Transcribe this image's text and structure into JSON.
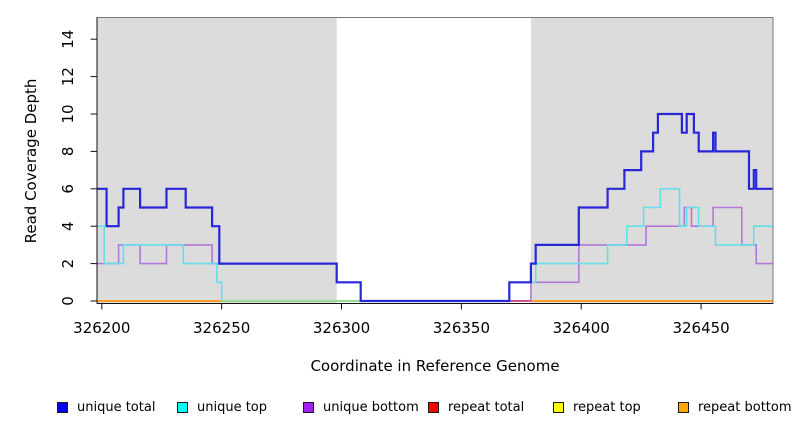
{
  "chart_data": {
    "type": "step-line",
    "title": "",
    "xlabel": "Coordinate in Reference Genome",
    "ylabel": "Read Coverage Depth",
    "xlim": [
      326198,
      326480
    ],
    "ylim": [
      0,
      15.2
    ],
    "x_ticks": [
      326200,
      326250,
      326300,
      326350,
      326400,
      326450
    ],
    "y_ticks": [
      0,
      2,
      4,
      6,
      8,
      10,
      12,
      14
    ],
    "grid": false,
    "legend_position": "bottom",
    "shaded_region_color": "#DCDCDC",
    "shaded_regions": [
      [
        326198,
        326298
      ],
      [
        326379,
        326480
      ]
    ],
    "series": [
      {
        "name": "unique total",
        "color": "#2727D8",
        "legend_color": "#0000EE",
        "width": 2.2,
        "points": [
          [
            326198,
            6
          ],
          [
            326202,
            4
          ],
          [
            326207,
            5
          ],
          [
            326209,
            6
          ],
          [
            326216,
            5
          ],
          [
            326227,
            6
          ],
          [
            326235,
            5
          ],
          [
            326246,
            4
          ],
          [
            326249,
            2
          ],
          [
            326298,
            1
          ],
          [
            326308,
            0
          ],
          [
            326370,
            1
          ],
          [
            326379,
            2
          ],
          [
            326381,
            3
          ],
          [
            326399,
            5
          ],
          [
            326411,
            6
          ],
          [
            326418,
            7
          ],
          [
            326425,
            8
          ],
          [
            326430,
            9
          ],
          [
            326432,
            10
          ],
          [
            326442,
            9
          ],
          [
            326444,
            10
          ],
          [
            326447,
            9
          ],
          [
            326449,
            8
          ],
          [
            326455,
            9
          ],
          [
            326456,
            8
          ],
          [
            326470,
            6
          ],
          [
            326472,
            7
          ],
          [
            326473,
            6
          ],
          [
            326480,
            6
          ]
        ]
      },
      {
        "name": "unique top",
        "color": "#63DFE9",
        "legend_color": "#00FFFF",
        "width": 1.6,
        "points": [
          [
            326198,
            4
          ],
          [
            326201,
            2
          ],
          [
            326209,
            3
          ],
          [
            326234,
            2
          ],
          [
            326248,
            1
          ],
          [
            326250,
            0
          ],
          [
            326370,
            1
          ],
          [
            326381,
            2
          ],
          [
            326411,
            3
          ],
          [
            326419,
            4
          ],
          [
            326426,
            5
          ],
          [
            326433,
            6
          ],
          [
            326441,
            4
          ],
          [
            326444,
            5
          ],
          [
            326449,
            4
          ],
          [
            326456,
            3
          ],
          [
            326472,
            4
          ],
          [
            326480,
            4
          ]
        ]
      },
      {
        "name": "unique bottom",
        "color": "#B277DB",
        "legend_color": "#A020F0",
        "width": 1.6,
        "points": [
          [
            326198,
            2
          ],
          [
            326207,
            3
          ],
          [
            326216,
            2
          ],
          [
            326227,
            3
          ],
          [
            326246,
            2
          ],
          [
            326298,
            1
          ],
          [
            326308,
            0
          ],
          [
            326379,
            1
          ],
          [
            326399,
            3
          ],
          [
            326427,
            4
          ],
          [
            326443,
            5
          ],
          [
            326446,
            4
          ],
          [
            326455,
            5
          ],
          [
            326467,
            3
          ],
          [
            326473,
            2
          ],
          [
            326480,
            2
          ]
        ]
      },
      {
        "name": "repeat total",
        "color": "#E02020",
        "legend_color": "#FF0000",
        "width": 1.5,
        "points": [
          [
            326198,
            0
          ],
          [
            326480,
            0
          ]
        ]
      },
      {
        "name": "repeat top",
        "color": "#FFFF00",
        "legend_color": "#FFFF00",
        "width": 1.5,
        "points": [
          [
            326198,
            0
          ],
          [
            326480,
            0
          ]
        ]
      },
      {
        "name": "repeat bottom",
        "color": "#FF9D2D",
        "legend_color": "#FFA500",
        "width": 2,
        "points": [
          [
            326198,
            0
          ],
          [
            326480,
            0
          ]
        ]
      }
    ],
    "baseline_blend_overlays": [
      {
        "name": "cyan-yellow-overplot",
        "x": [
          326250,
          326370
        ],
        "y": 0,
        "color": "#94D994",
        "width": 2
      },
      {
        "name": "red-purple-overplot",
        "x": [
          326370,
          326379
        ],
        "y": 0,
        "color": "#CC5590",
        "width": 2
      }
    ]
  }
}
